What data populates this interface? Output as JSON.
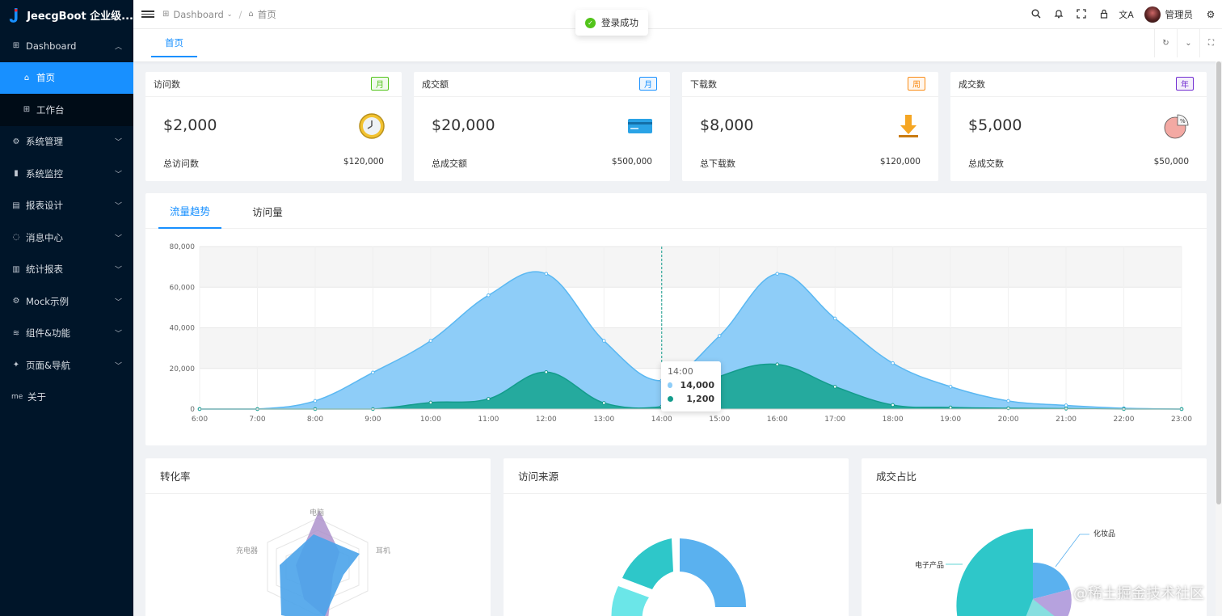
{
  "app": {
    "title": "JeecgBoot 企业级..."
  },
  "sidebar": {
    "items": [
      {
        "label": "Dashboard",
        "icon": "grid-icon"
      },
      {
        "label": "首页",
        "icon": "bank-icon"
      },
      {
        "label": "工作台",
        "icon": "grid-icon"
      },
      {
        "label": "系统管理",
        "icon": "gear-icon"
      },
      {
        "label": "系统监控",
        "icon": "video-icon"
      },
      {
        "label": "报表设计",
        "icon": "book-icon"
      },
      {
        "label": "消息中心",
        "icon": "message-icon"
      },
      {
        "label": "统计报表",
        "icon": "bar-chart-icon"
      },
      {
        "label": "Mock示例",
        "icon": "gear-icon"
      },
      {
        "label": "组件&功能",
        "icon": "layers-icon"
      },
      {
        "label": "页面&导航",
        "icon": "settings-icon"
      },
      {
        "label": "关于",
        "icon": "me-icon",
        "icon_text": "me"
      }
    ]
  },
  "header": {
    "breadcrumb": [
      "Dashboard",
      "首页"
    ],
    "user_name": "管理员"
  },
  "toast": {
    "text": "登录成功"
  },
  "tabs": {
    "active": "首页"
  },
  "stats": [
    {
      "title": "访问数",
      "tag": "月",
      "tag_color": "#52c41a",
      "value": "$2,000",
      "foot_label": "总访问数",
      "foot_value": "$120,000",
      "icon": "clock-icon"
    },
    {
      "title": "成交额",
      "tag": "月",
      "tag_color": "#1890ff",
      "value": "$20,000",
      "foot_label": "总成交额",
      "foot_value": "$500,000",
      "icon": "credit-card-icon"
    },
    {
      "title": "下载数",
      "tag": "周",
      "tag_color": "#fa8c16",
      "value": "$8,000",
      "foot_label": "总下载数",
      "foot_value": "$120,000",
      "icon": "download-icon"
    },
    {
      "title": "成交数",
      "tag": "年",
      "tag_color": "#722ed1",
      "value": "$5,000",
      "foot_label": "总成交数",
      "foot_value": "$50,000",
      "icon": "pie-icon"
    }
  ],
  "trend_tabs": [
    "流量趋势",
    "访问量"
  ],
  "chart_data": [
    {
      "type": "area",
      "categories": [
        "6:00",
        "7:00",
        "8:00",
        "9:00",
        "10:00",
        "11:00",
        "12:00",
        "13:00",
        "14:00",
        "15:00",
        "16:00",
        "17:00",
        "18:00",
        "19:00",
        "20:00",
        "21:00",
        "22:00",
        "23:00"
      ],
      "series": [
        {
          "values": [
            0,
            0,
            4000,
            18000,
            33600,
            56000,
            66600,
            33600,
            14000,
            36000,
            66600,
            44600,
            22600,
            11000,
            4000,
            1800,
            400,
            0
          ],
          "color": "#8ecdf8"
        },
        {
          "values": [
            0,
            0,
            0,
            0,
            3200,
            5000,
            18200,
            3000,
            1200,
            16000,
            22000,
            11000,
            2000,
            800,
            400,
            200,
            0,
            0
          ],
          "color": "#20a899"
        }
      ],
      "ylim": [
        0,
        80000
      ],
      "yticks": [
        "0",
        "20,000",
        "40,000",
        "60,000",
        "80,000"
      ],
      "grid": true,
      "tooltip": {
        "x": "14:00",
        "values": [
          "14,000",
          "1,200"
        ]
      }
    },
    {
      "type": "radar",
      "title": "转化率",
      "indicators": [
        "电脑",
        "耳机",
        "充电器"
      ]
    },
    {
      "type": "pie",
      "title": "访问来源",
      "donut": true
    },
    {
      "type": "pie",
      "title": "成交占比",
      "labels": [
        "化妆品",
        "电子产品"
      ]
    }
  ],
  "watermark": "@稀土掘金技术社区"
}
